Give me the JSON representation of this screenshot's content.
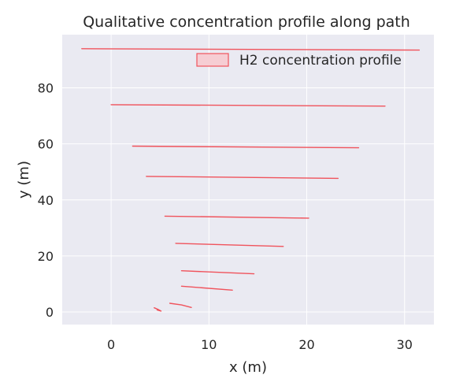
{
  "chart_data": {
    "type": "area",
    "title": "Qualitative concentration profile along path",
    "xlabel": "x (m)",
    "ylabel": "y (m)",
    "xlim": [
      -5,
      33
    ],
    "ylim": [
      -4.5,
      99
    ],
    "xticks": [
      0,
      10,
      20,
      30
    ],
    "yticks": [
      0,
      20,
      40,
      60,
      80
    ],
    "grid": true,
    "legend": {
      "placement": "upper right",
      "entries": [
        "H2 concentration profile"
      ]
    },
    "colors": {
      "series": "#f0535c",
      "fill": "#f6cdd3",
      "background": "#eaeaf2",
      "grid": "#ffffff"
    },
    "series": [
      {
        "name": "H2 concentration profile",
        "segments": [
          {
            "x": [
              -3.0,
              31.5
            ],
            "y": [
              94.0,
              93.5
            ]
          },
          {
            "x": [
              0.0,
              28.0
            ],
            "y": [
              74.0,
              73.5
            ]
          },
          {
            "x": [
              2.2,
              25.3
            ],
            "y": [
              59.2,
              58.6
            ]
          },
          {
            "x": [
              3.6,
              23.2
            ],
            "y": [
              48.4,
              47.7
            ]
          },
          {
            "x": [
              5.5,
              20.2
            ],
            "y": [
              34.2,
              33.5
            ]
          },
          {
            "x": [
              6.6,
              17.6
            ],
            "y": [
              24.5,
              23.4
            ]
          },
          {
            "x": [
              7.2,
              14.6
            ],
            "y": [
              14.7,
              13.6
            ]
          },
          {
            "x": [
              7.2,
              12.4
            ],
            "y": [
              9.2,
              7.8
            ]
          },
          {
            "x": [
              6.0,
              7.2,
              8.2
            ],
            "y": [
              3.1,
              2.5,
              1.6
            ]
          },
          {
            "x": [
              4.4,
              4.8,
              5.1,
              4.7
            ],
            "y": [
              1.5,
              0.9,
              0.3,
              0.7
            ]
          }
        ]
      }
    ]
  }
}
